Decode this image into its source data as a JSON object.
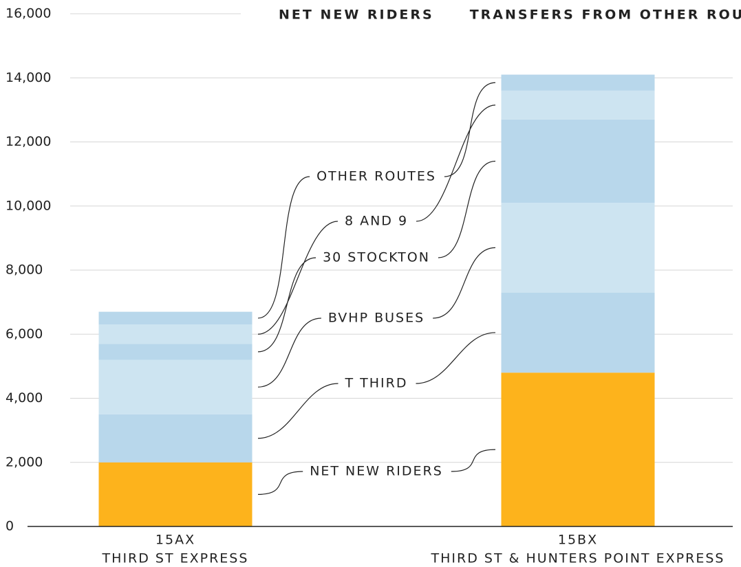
{
  "chart_data": {
    "type": "stacked_bar",
    "categories": [
      "15AX",
      "15BX"
    ],
    "category_names": [
      "THIRD ST EXPRESS",
      "THIRD ST & HUNTERS POINT EXPRESS"
    ],
    "series": [
      {
        "name": "NET NEW RIDERS",
        "color": "#fdb31c",
        "values": [
          2000,
          4800
        ]
      },
      {
        "name": "T THIRD",
        "color": "#b8d7eb",
        "values": [
          1500,
          2500
        ]
      },
      {
        "name": "BVHP BUSES",
        "color": "#cde4f1",
        "values": [
          1700,
          2800
        ]
      },
      {
        "name": "30 STOCKTON",
        "color": "#b8d7eb",
        "values": [
          500,
          2600
        ]
      },
      {
        "name": "8 AND 9",
        "color": "#cde4f1",
        "values": [
          600,
          900
        ]
      },
      {
        "name": "OTHER ROUTES",
        "color": "#b8d7eb",
        "values": [
          400,
          500
        ]
      }
    ],
    "legend": [
      {
        "label": "NET NEW RIDERS",
        "color": "#fdb31c"
      },
      {
        "label": "TRANSFERS FROM OTHER ROUTES",
        "color": "#9fcbe8"
      }
    ],
    "ylim": [
      0,
      16000
    ],
    "yticks": [
      0,
      {
        "value": 2000,
        "label": "2,000"
      },
      {
        "value": 4000,
        "label": "4,000"
      },
      {
        "value": 6000,
        "label": "6,000"
      },
      {
        "value": 8000,
        "label": "8,000"
      },
      {
        "value": 10000,
        "label": "10,000"
      },
      {
        "value": 12000,
        "label": "12,000"
      },
      {
        "value": 14000,
        "label": "14,000"
      },
      {
        "value": 16000,
        "label": "16,000"
      }
    ],
    "grid": true
  }
}
